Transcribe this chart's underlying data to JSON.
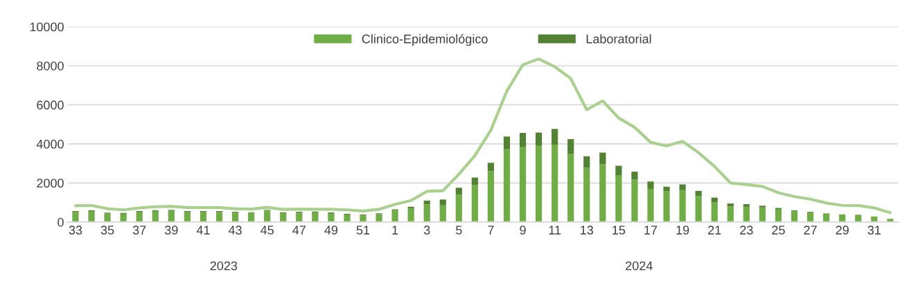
{
  "chart_data": {
    "type": "bar",
    "stacked": true,
    "categories": [
      "33",
      null,
      "35",
      null,
      "37",
      null,
      "39",
      null,
      "41",
      null,
      "43",
      null,
      "45",
      null,
      "47",
      null,
      "49",
      null,
      "51",
      null,
      "1",
      null,
      "3",
      null,
      "5",
      null,
      "7",
      null,
      "9",
      null,
      "11",
      null,
      "13",
      null,
      "15",
      null,
      "17",
      null,
      "19",
      null,
      "21",
      null,
      "23",
      null,
      "25",
      null,
      "27",
      null,
      "29",
      null,
      "31",
      null
    ],
    "series": [
      {
        "name": "Clinico-Epidemiológico",
        "color": "#70ad47",
        "values": [
          520,
          560,
          440,
          420,
          520,
          560,
          580,
          520,
          520,
          520,
          480,
          460,
          580,
          450,
          480,
          490,
          450,
          380,
          340,
          400,
          600,
          680,
          900,
          850,
          1400,
          1900,
          2600,
          3720,
          3850,
          3900,
          3960,
          3500,
          2770,
          2960,
          2400,
          2180,
          1690,
          1570,
          1630,
          1330,
          1000,
          800,
          780,
          740,
          660,
          570,
          500,
          440,
          390,
          370,
          280,
          160
        ]
      },
      {
        "name": "Laboratorial",
        "color": "#548235",
        "values": [
          40,
          40,
          40,
          40,
          40,
          40,
          40,
          40,
          40,
          40,
          40,
          40,
          40,
          40,
          40,
          40,
          40,
          40,
          40,
          40,
          50,
          100,
          200,
          300,
          350,
          380,
          430,
          660,
          710,
          680,
          810,
          740,
          600,
          590,
          480,
          400,
          380,
          240,
          290,
          260,
          250,
          150,
          130,
          90,
          60,
          30,
          20,
          null,
          null,
          null,
          null,
          null
        ]
      },
      {
        "type": "line",
        "color": "#a9d08e",
        "values": [
          830,
          850,
          680,
          620,
          720,
          780,
          800,
          740,
          740,
          740,
          680,
          660,
          750,
          640,
          660,
          650,
          650,
          620,
          560,
          650,
          900,
          1100,
          1570,
          1600,
          2450,
          3400,
          4700,
          6700,
          8050,
          8350,
          7950,
          7350,
          5750,
          6200,
          5330,
          4850,
          4080,
          3900,
          4130,
          3550,
          2850,
          2000,
          1920,
          1820,
          1500,
          1300,
          1170,
          970,
          850,
          840,
          720,
          480
        ]
      }
    ],
    "ylim": [
      0,
      10000
    ],
    "yticks": [
      0,
      2000,
      4000,
      6000,
      8000,
      10000
    ],
    "grid": "y",
    "legend": "top",
    "annotations": [
      "2023",
      "2024"
    ]
  }
}
